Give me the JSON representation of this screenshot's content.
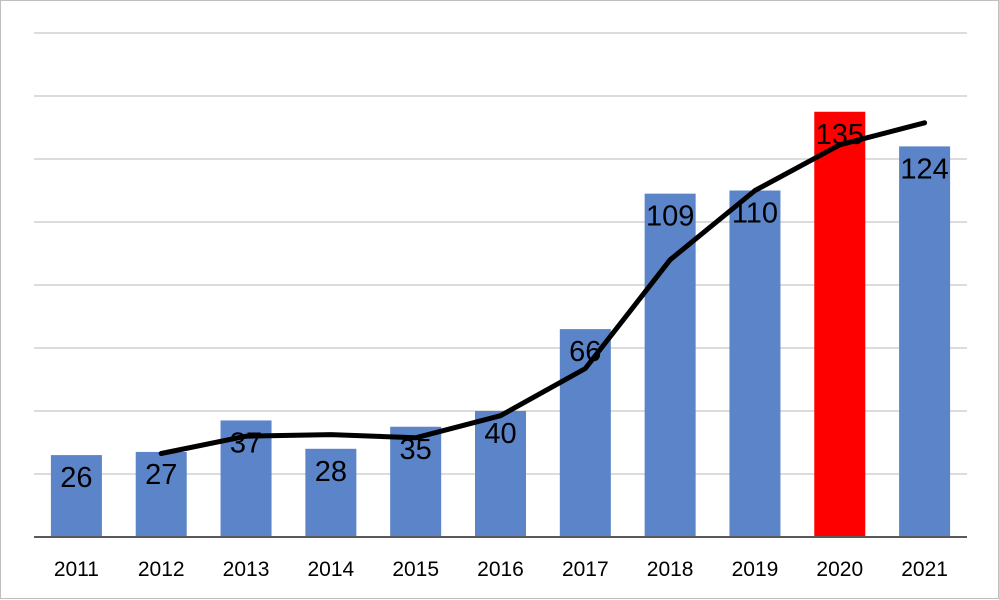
{
  "chart_data": {
    "type": "bar",
    "categories": [
      "2011",
      "2012",
      "2013",
      "2014",
      "2015",
      "2016",
      "2017",
      "2018",
      "2019",
      "2020",
      "2021"
    ],
    "values": [
      26,
      27,
      37,
      28,
      35,
      40,
      66,
      109,
      110,
      135,
      124
    ],
    "data_labels": [
      "26",
      "27",
      "37",
      "28",
      "35",
      "40",
      "66",
      "109",
      "110",
      "135",
      "124"
    ],
    "ylim": [
      0,
      160
    ],
    "gridlines": true,
    "bar_color": "#5b84c9",
    "highlight_category": "2020",
    "highlight_color": "#ff0000",
    "trend_line": {
      "type": "line",
      "color": "#000000",
      "x": [
        "2012",
        "2013",
        "2014",
        "2015",
        "2016",
        "2017",
        "2018",
        "2019",
        "2020",
        "2021"
      ],
      "values": [
        26.5,
        32,
        32.5,
        31.5,
        38.5,
        53.5,
        88,
        110,
        124.5,
        131.5
      ]
    },
    "title": "",
    "xlabel": "",
    "ylabel": ""
  }
}
